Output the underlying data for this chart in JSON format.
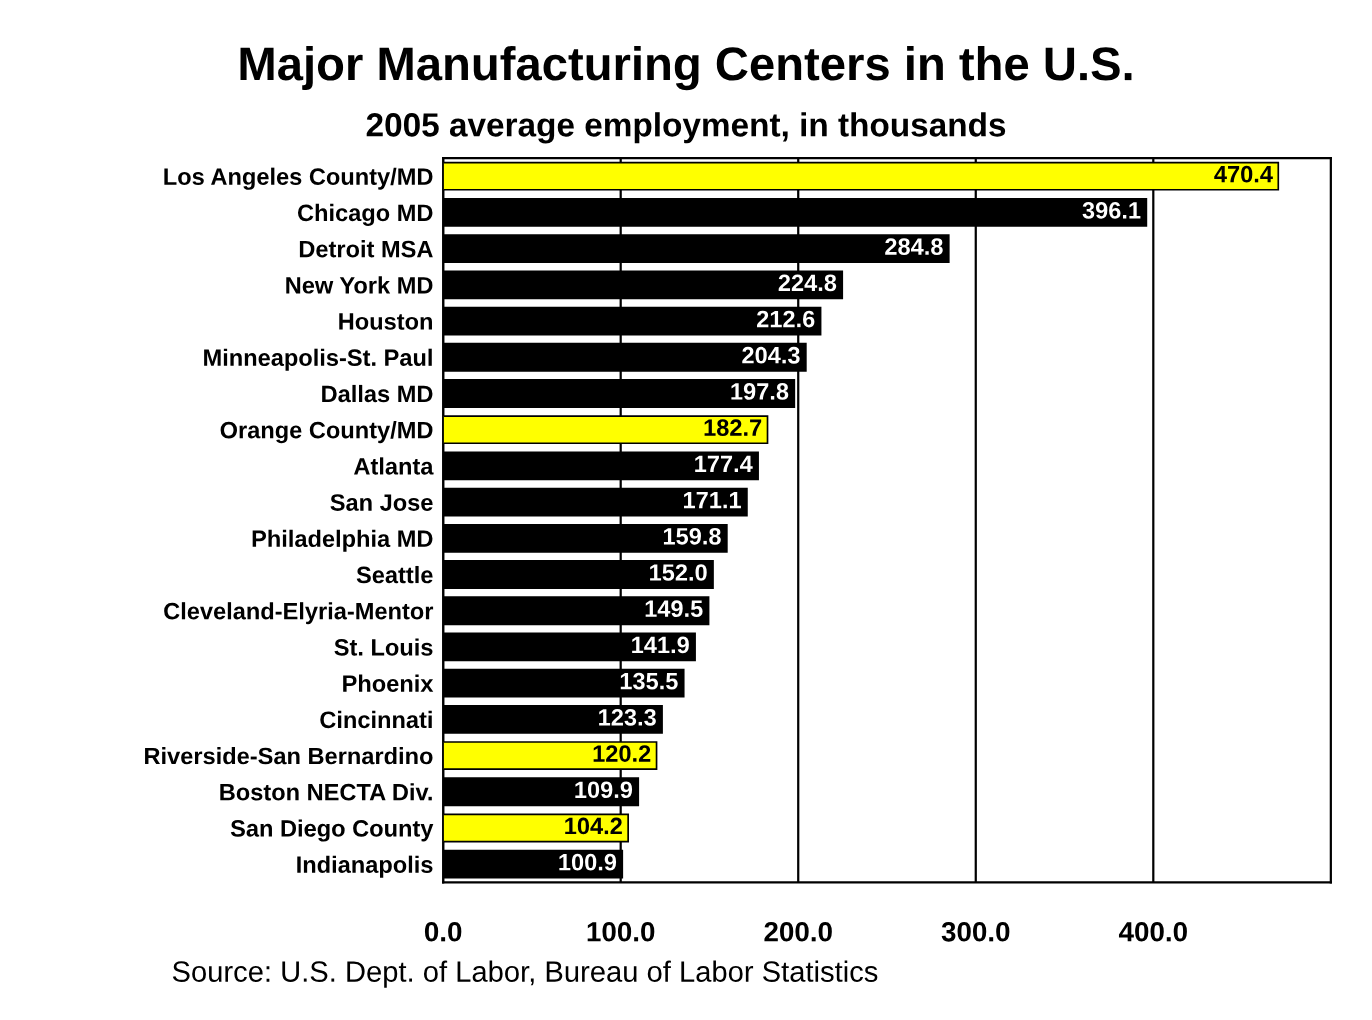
{
  "chart_data": {
    "type": "bar",
    "orientation": "horizontal",
    "title": "Major Manufacturing Centers in the U.S.",
    "subtitle": "2005 average employment, in thousands",
    "categories": [
      "Los Angeles County/MD",
      "Chicago MD",
      "Detroit MSA",
      "New York MD",
      "Houston",
      "Minneapolis-St. Paul",
      "Dallas MD",
      "Orange County/MD",
      "Atlanta",
      "San Jose",
      "Philadelphia MD",
      "Seattle",
      "Cleveland-Elyria-Mentor",
      "St. Louis",
      "Phoenix",
      "Cincinnati",
      "Riverside-San Bernardino",
      "Boston NECTA Div.",
      "San Diego County",
      "Indianapolis"
    ],
    "values": [
      470.4,
      396.1,
      284.8,
      224.8,
      212.6,
      204.3,
      197.8,
      182.7,
      177.4,
      171.1,
      159.8,
      152.0,
      149.5,
      141.9,
      135.5,
      123.3,
      120.2,
      109.9,
      104.2,
      100.9
    ],
    "value_labels": [
      "470.4",
      "396.1",
      "284.8",
      "224.8",
      "212.6",
      "204.3",
      "197.8",
      "182.7",
      "177.4",
      "171.1",
      "159.8",
      "152.0",
      "149.5",
      "141.9",
      "135.5",
      "123.3",
      "120.2",
      "109.9",
      "104.2",
      "100.9"
    ],
    "colors": [
      "#ffff00",
      "#000000",
      "#000000",
      "#000000",
      "#000000",
      "#000000",
      "#000000",
      "#ffff00",
      "#000000",
      "#000000",
      "#000000",
      "#000000",
      "#000000",
      "#000000",
      "#000000",
      "#000000",
      "#ffff00",
      "#000000",
      "#ffff00",
      "#000000"
    ],
    "xlim": [
      0,
      500
    ],
    "xticks": [
      {
        "value": 0,
        "label": "0.0"
      },
      {
        "value": 100,
        "label": "100.0"
      },
      {
        "value": 200,
        "label": "200.0"
      },
      {
        "value": 300,
        "label": "300.0"
      },
      {
        "value": 400,
        "label": "400.0"
      }
    ],
    "grid": "x",
    "legend": false,
    "annotations": [
      "Source: U.S. Dept. of Labor, Bureau of Labor Statistics"
    ]
  }
}
